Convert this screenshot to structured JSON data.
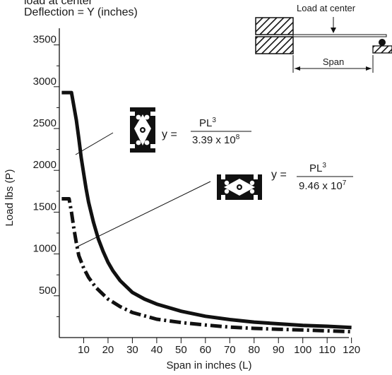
{
  "header": {
    "line1": "load at center",
    "line2": "Deflection = Y (inches)"
  },
  "diagram": {
    "load_label": "Load at center",
    "span_label": "Span"
  },
  "formulas": {
    "upper": {
      "prefix": "y =",
      "numerator": "PL",
      "num_exp": "3",
      "denominator": "3.39 x 10",
      "den_exp": "8"
    },
    "lower": {
      "prefix": "y =",
      "numerator": "PL",
      "num_exp": "3",
      "denominator": "9.46 x 10",
      "den_exp": "7"
    }
  },
  "chart_data": {
    "type": "line",
    "xlabel": "Span in inches (L)",
    "ylabel": "Load lbs (P)",
    "xlim": [
      0,
      125
    ],
    "ylim": [
      0,
      3700
    ],
    "x_ticks": [
      10,
      20,
      30,
      40,
      50,
      60,
      70,
      80,
      90,
      100,
      110,
      120
    ],
    "y_ticks": [
      500,
      1000,
      1500,
      2000,
      2500,
      3000,
      3500
    ],
    "grid": false,
    "series": [
      {
        "style": "solid",
        "color": "#111111",
        "x": [
          1,
          5,
          7,
          8,
          9,
          10,
          11,
          12,
          14,
          16,
          18,
          20,
          22,
          25,
          30,
          35,
          40,
          50,
          60,
          70,
          80,
          90,
          100,
          110,
          120
        ],
        "values": [
          2930,
          2930,
          2600,
          2380,
          2150,
          1960,
          1780,
          1620,
          1380,
          1180,
          1030,
          900,
          800,
          680,
          540,
          460,
          400,
          315,
          255,
          215,
          185,
          165,
          145,
          135,
          120
        ]
      },
      {
        "style": "dash-dot",
        "color": "#111111",
        "x": [
          1,
          4,
          5,
          6,
          7,
          8,
          10,
          12,
          15,
          20,
          25,
          30,
          40,
          50,
          60,
          70,
          80,
          90,
          100,
          110,
          120
        ],
        "values": [
          1660,
          1660,
          1500,
          1300,
          1130,
          980,
          830,
          720,
          600,
          460,
          370,
          300,
          220,
          180,
          150,
          125,
          110,
          100,
          90,
          80,
          70
        ]
      }
    ]
  }
}
